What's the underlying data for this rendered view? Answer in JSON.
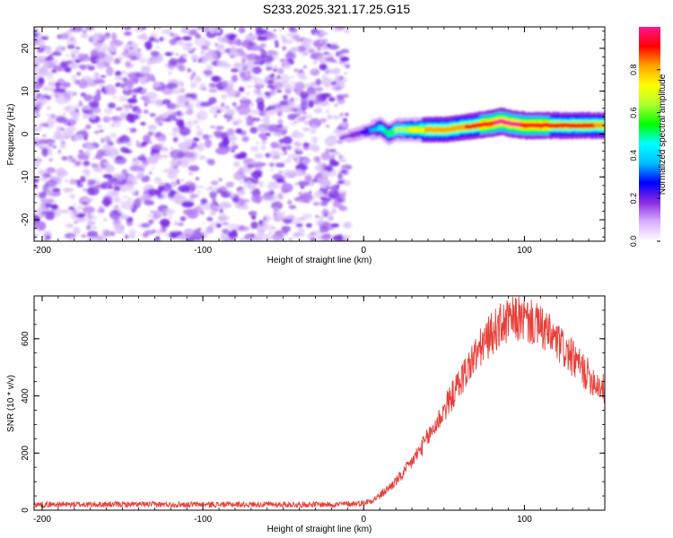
{
  "title": "S233.2025.321.17.25.G15",
  "chart_data": [
    {
      "type": "heatmap",
      "xlabel": "Height of straight line (km)",
      "ylabel": "Frequency (Hz)",
      "xlim": [
        -205,
        150
      ],
      "ylim": [
        -25,
        25
      ],
      "xticks": [
        -200,
        -100,
        0,
        100
      ],
      "yticks": [
        -20,
        -10,
        0,
        10,
        20
      ],
      "noise_region": {
        "x_from": -205,
        "x_to": -10,
        "y_from": -25,
        "y_to": 25,
        "amplitude_range": [
          0.05,
          0.3
        ]
      },
      "ridge": {
        "x": [
          -15,
          -5,
          0,
          5,
          10,
          15,
          20,
          30,
          40,
          50,
          60,
          70,
          80,
          85,
          90,
          100,
          110,
          120,
          130,
          140,
          150
        ],
        "freq": [
          -1,
          0,
          0.5,
          1,
          1.5,
          0,
          1,
          1,
          1,
          1,
          1.5,
          2,
          2.5,
          3,
          2.5,
          2,
          2,
          2,
          2,
          2,
          2
        ],
        "amplitude": [
          0.15,
          0.2,
          0.25,
          0.35,
          0.45,
          0.55,
          0.6,
          0.7,
          0.8,
          0.82,
          0.85,
          0.9,
          0.95,
          1.0,
          0.97,
          0.95,
          0.92,
          0.9,
          0.88,
          0.87,
          0.85
        ]
      },
      "colorbar": {
        "label": "Normalized spectral amplitude",
        "ticks": [
          0.0,
          0.2,
          0.4,
          0.6,
          0.8
        ],
        "tick_labels": [
          "0.0",
          "0.2",
          "0.4",
          "0.6",
          "0.8"
        ],
        "range": [
          0,
          1
        ],
        "colors": [
          "#ffffff",
          "#d8b0ff",
          "#8a2be2",
          "#0000ff",
          "#00bfff",
          "#00ffff",
          "#00ff00",
          "#adff2f",
          "#ffff00",
          "#ffa500",
          "#ff0000",
          "#ff1493"
        ]
      }
    },
    {
      "type": "line",
      "xlabel": "Height of straight line (km)",
      "ylabel": "SNR (10 * v/v)",
      "xlim": [
        -205,
        150
      ],
      "ylim": [
        0,
        750
      ],
      "xticks": [
        -200,
        -100,
        0,
        100
      ],
      "yticks": [
        0,
        200,
        400,
        600
      ],
      "color": "#e8403a",
      "series": [
        {
          "name": "SNR",
          "x": [
            -205,
            -180,
            -150,
            -120,
            -100,
            -80,
            -60,
            -40,
            -20,
            -10,
            0,
            5,
            10,
            15,
            20,
            25,
            30,
            35,
            40,
            45,
            50,
            55,
            60,
            65,
            70,
            75,
            80,
            85,
            90,
            95,
            100,
            105,
            110,
            115,
            120,
            125,
            130,
            135,
            140,
            145,
            150
          ],
          "y": [
            20,
            20,
            20,
            20,
            20,
            20,
            20,
            20,
            20,
            22,
            25,
            35,
            50,
            75,
            100,
            130,
            170,
            210,
            255,
            300,
            350,
            400,
            450,
            500,
            545,
            585,
            620,
            645,
            660,
            670,
            665,
            655,
            640,
            615,
            590,
            560,
            530,
            500,
            470,
            445,
            420
          ],
          "noise": 20
        }
      ]
    }
  ]
}
